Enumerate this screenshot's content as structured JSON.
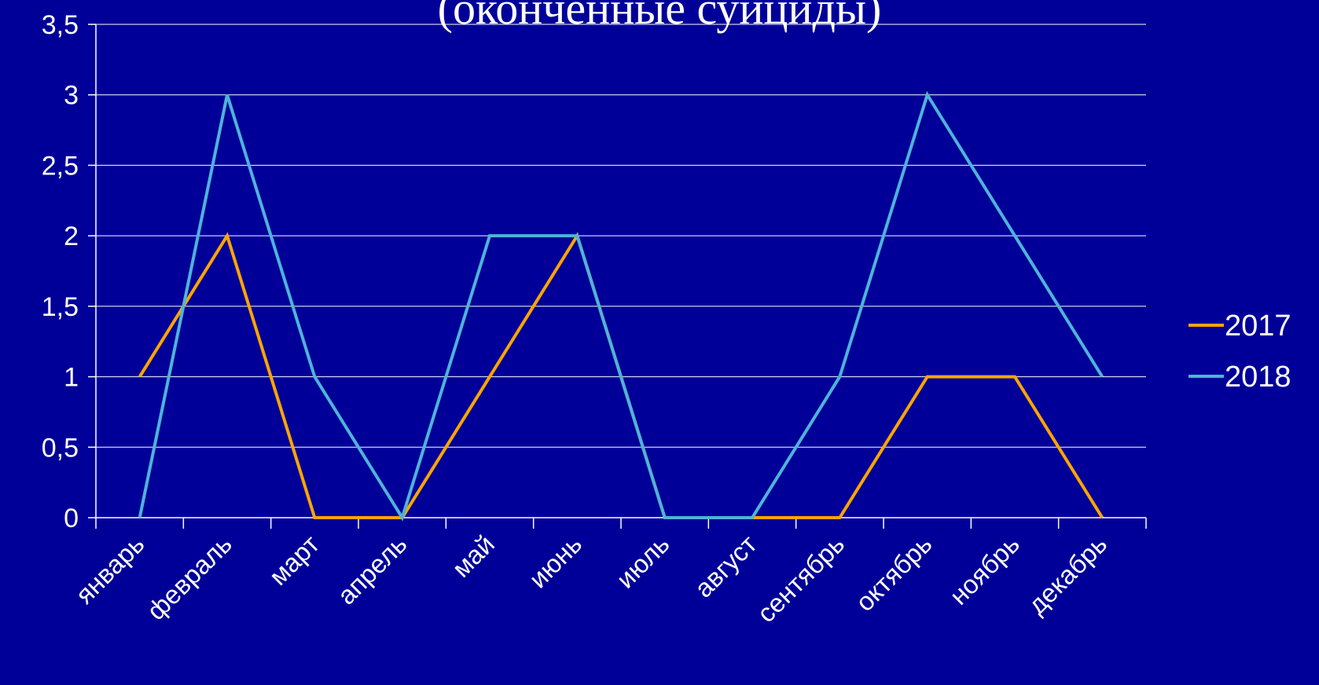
{
  "chart_data": {
    "type": "line",
    "title": "(оконченные суициды)",
    "categories": [
      "январь",
      "февраль",
      "март",
      "апрель",
      "май",
      "июнь",
      "июль",
      "август",
      "сентябрь",
      "октябрь",
      "ноябрь",
      "декабрь"
    ],
    "series": [
      {
        "name": "2017",
        "color": "#FFA500",
        "values": [
          1,
          2,
          0,
          0,
          1,
          2,
          0,
          0,
          0,
          1,
          1,
          0
        ]
      },
      {
        "name": "2018",
        "color": "#4FB3D9",
        "values": [
          0,
          3,
          1,
          0,
          2,
          2,
          0,
          0,
          1,
          3,
          2,
          1
        ]
      }
    ],
    "ylim": [
      0,
      3.5
    ],
    "yticks": [
      0,
      0.5,
      1,
      1.5,
      2,
      2.5,
      3,
      3.5
    ],
    "ytick_labels": [
      "0",
      "0,5",
      "1",
      "1,5",
      "2",
      "2,5",
      "3",
      "3,5"
    ],
    "grid": true,
    "legend": "right",
    "colors": {
      "background": "#000099",
      "text": "#FFFFFF",
      "grid": "#FFFFFF"
    }
  }
}
